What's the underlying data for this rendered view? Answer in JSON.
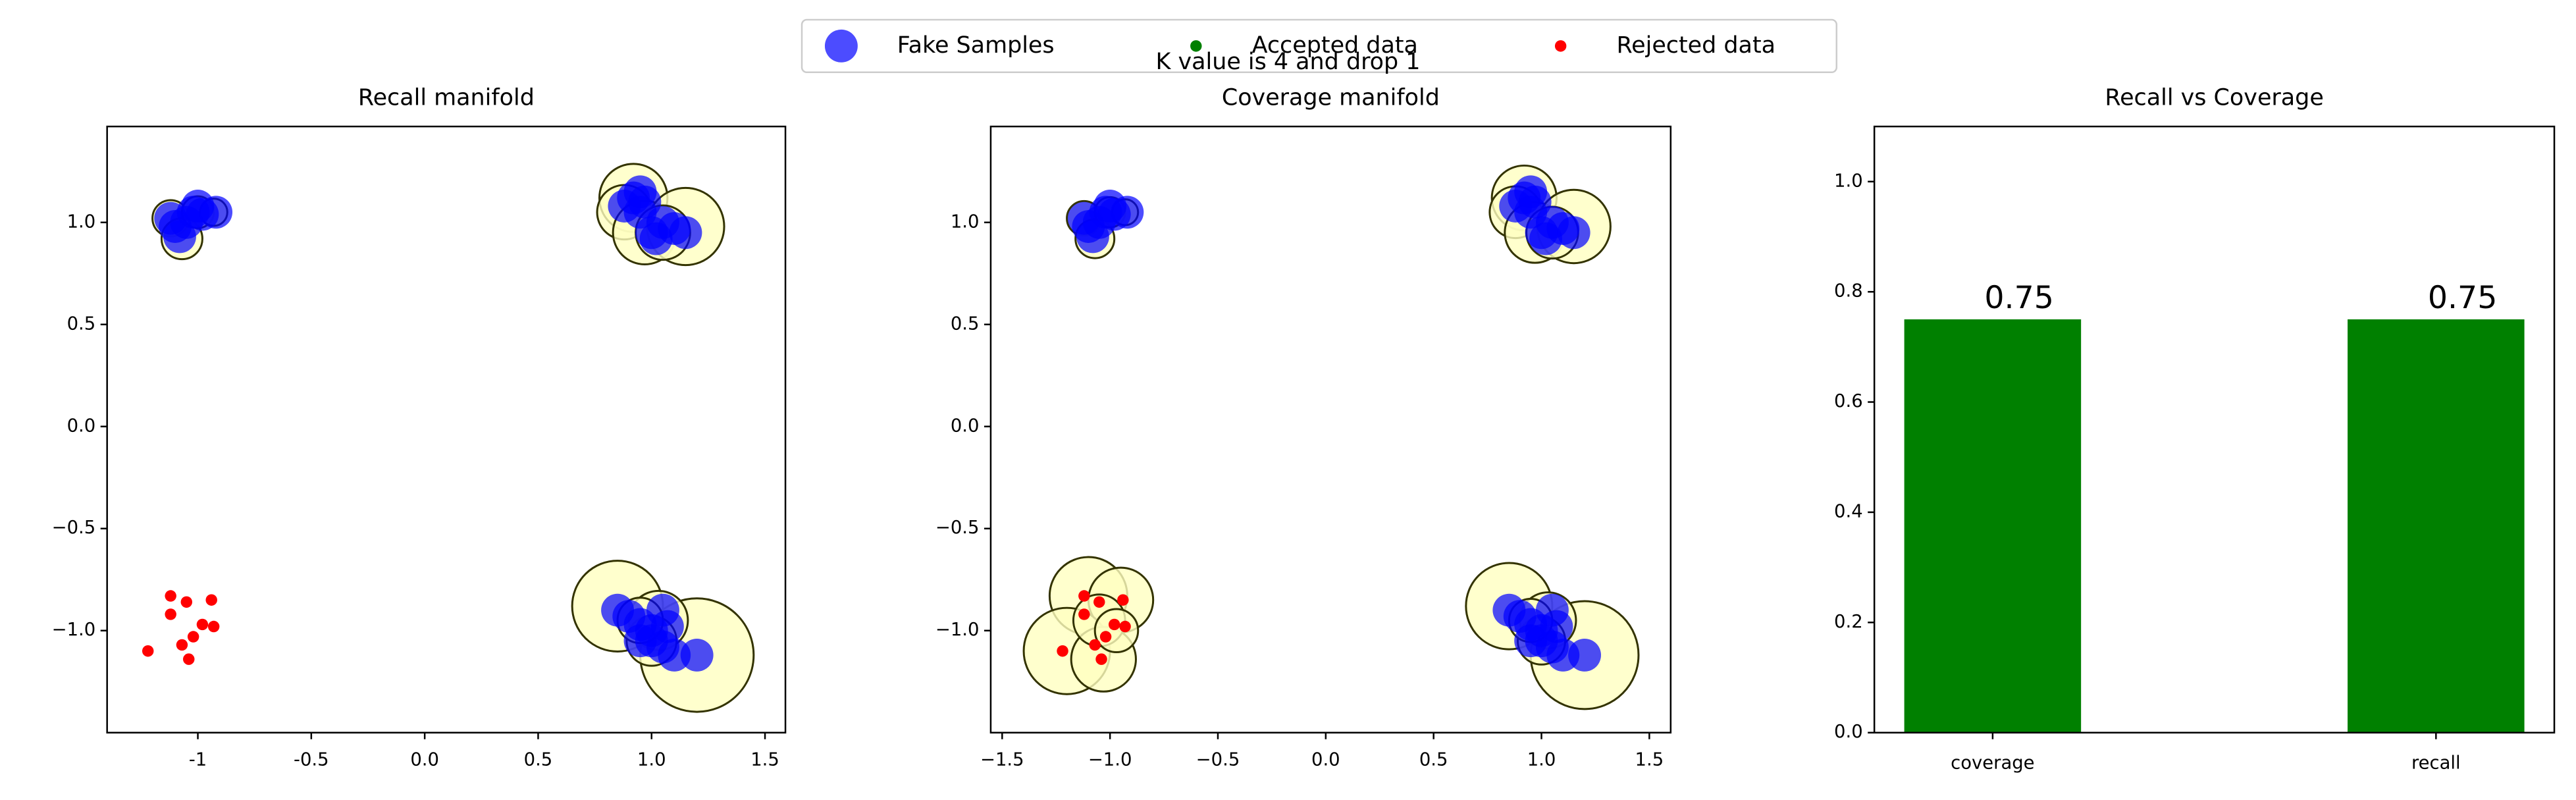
{
  "title": "K value is 4 and drop 1",
  "chart_data": [
    {
      "type": "scatter",
      "title": "Recall manifold",
      "xlim": [
        -1.4,
        1.59
      ],
      "ylim": [
        -1.5,
        1.47
      ],
      "xticks": [
        -1,
        -0.5,
        {
          "value": 0,
          "label": "0.0"
        },
        0.5,
        {
          "value": 1,
          "label": "1.0"
        },
        1.5
      ],
      "yticks": [
        {
          "value": -1,
          "label": "−1.0"
        },
        {
          "value": -0.5,
          "label": "−0.5"
        },
        {
          "value": 0,
          "label": "0.0"
        },
        0.5,
        {
          "value": 1,
          "label": "1.0"
        }
      ],
      "series": [
        {
          "color": "#ffffc0",
          "edgecolor": "#333300",
          "x": [
            -1.12,
            -1.07,
            -1.0,
            -0.93,
            0.92,
            0.88,
            0.97,
            1.15,
            1.05,
            0.85,
            1.2,
            1.03,
            1.0,
            0.95
          ],
          "values": [
            1.02,
            0.92,
            1.05,
            1.05,
            1.12,
            1.05,
            0.95,
            0.98,
            0.95,
            -0.88,
            -1.12,
            -0.95,
            -1.05,
            -0.95
          ],
          "r": [
            0.08,
            0.09,
            0.07,
            0.06,
            0.15,
            0.12,
            0.14,
            0.17,
            0.12,
            0.2,
            0.25,
            0.13,
            0.11,
            0.1
          ]
        },
        {
          "name": "Fake Samples",
          "color": "#0000ff",
          "marker_size": 10,
          "x": [
            -1.12,
            -1.08,
            -1.05,
            -1.02,
            -0.98,
            -0.92,
            -1.1,
            -1.0,
            0.88,
            0.92,
            0.95,
            0.97,
            1.0,
            1.02,
            1.05,
            1.1,
            1.15,
            0.95,
            0.85,
            0.9,
            0.95,
            1.0,
            1.05,
            1.07,
            1.0,
            0.95,
            1.1,
            1.2,
            1.05
          ],
          "values": [
            1.02,
            0.93,
            1.0,
            1.05,
            1.04,
            1.05,
            0.98,
            1.08,
            1.08,
            1.12,
            1.15,
            1.1,
            0.95,
            0.92,
            1.0,
            0.97,
            0.95,
            1.05,
            -0.9,
            -0.93,
            -0.97,
            -1.0,
            -0.9,
            -0.98,
            -1.05,
            -1.05,
            -1.12,
            -1.12,
            -1.08
          ]
        },
        {
          "name": "Accepted data",
          "color": "#008000",
          "marker_size": 3.5,
          "x": [],
          "values": []
        },
        {
          "name": "Rejected data",
          "color": "#ff0000",
          "marker_size": 3.5,
          "x": [
            -1.12,
            -1.05,
            -0.94,
            -1.12,
            -0.98,
            -0.93,
            -1.02,
            -1.07,
            -1.22,
            -1.04
          ],
          "values": [
            -0.83,
            -0.86,
            -0.85,
            -0.92,
            -0.97,
            -0.98,
            -1.03,
            -1.07,
            -1.1,
            -1.14
          ]
        }
      ]
    },
    {
      "type": "scatter",
      "title": "Coverage manifold",
      "xlim": [
        -1.553,
        1.599
      ],
      "ylim": [
        -1.5,
        1.47
      ],
      "xticks": [
        {
          "value": -1.5,
          "label": "−1.5"
        },
        {
          "value": -1,
          "label": "−1.0"
        },
        {
          "value": -0.5,
          "label": "−0.5"
        },
        {
          "value": 0,
          "label": "0.0"
        },
        0.5,
        {
          "value": 1,
          "label": "1.0"
        },
        1.5
      ],
      "yticks": [
        {
          "value": -1,
          "label": "−1.0"
        },
        {
          "value": -0.5,
          "label": "−0.5"
        },
        {
          "value": 0,
          "label": "0.0"
        },
        0.5,
        {
          "value": 1,
          "label": "1.0"
        }
      ],
      "series": [
        {
          "color": "#ffffc0",
          "edgecolor": "#333300",
          "x": [
            -1.12,
            -1.07,
            -1.0,
            -0.93,
            0.92,
            0.88,
            0.97,
            1.15,
            1.05,
            0.85,
            1.2,
            1.03,
            1.0,
            0.95,
            -1.1,
            -0.95,
            -1.2,
            -1.03,
            -1.05,
            -0.97
          ],
          "values": [
            1.02,
            0.92,
            1.05,
            1.05,
            1.12,
            1.05,
            0.95,
            0.98,
            0.95,
            -0.88,
            -1.12,
            -0.95,
            -1.05,
            -0.95,
            -0.83,
            -0.85,
            -1.1,
            -1.14,
            -0.95,
            -1.0
          ],
          "r": [
            0.08,
            0.09,
            0.07,
            0.06,
            0.15,
            0.12,
            0.14,
            0.17,
            0.12,
            0.2,
            0.25,
            0.13,
            0.11,
            0.1,
            0.18,
            0.15,
            0.2,
            0.15,
            0.12,
            0.1
          ]
        },
        {
          "name": "Fake Samples",
          "color": "#0000ff",
          "marker_size": 10,
          "x": [
            -1.12,
            -1.08,
            -1.05,
            -1.02,
            -0.98,
            -0.92,
            -1.1,
            -1.0,
            0.88,
            0.92,
            0.95,
            0.97,
            1.0,
            1.02,
            1.05,
            1.1,
            1.15,
            0.95,
            0.85,
            0.9,
            0.95,
            1.0,
            1.05,
            1.07,
            1.0,
            0.95,
            1.1,
            1.2,
            1.05
          ],
          "values": [
            1.02,
            0.93,
            1.0,
            1.05,
            1.04,
            1.05,
            0.98,
            1.08,
            1.08,
            1.12,
            1.15,
            1.1,
            0.95,
            0.92,
            1.0,
            0.97,
            0.95,
            1.05,
            -0.9,
            -0.93,
            -0.97,
            -1.0,
            -0.9,
            -0.98,
            -1.05,
            -1.05,
            -1.12,
            -1.12,
            -1.08
          ]
        },
        {
          "name": "Accepted data",
          "color": "#008000",
          "marker_size": 3.5,
          "x": [],
          "values": []
        },
        {
          "name": "Rejected data",
          "color": "#ff0000",
          "marker_size": 3.5,
          "x": [
            -1.12,
            -1.05,
            -0.94,
            -1.12,
            -0.98,
            -0.93,
            -1.02,
            -1.07,
            -1.22,
            -1.04
          ],
          "values": [
            -0.83,
            -0.86,
            -0.85,
            -0.92,
            -0.97,
            -0.98,
            -1.03,
            -1.07,
            -1.1,
            -1.14
          ]
        }
      ]
    },
    {
      "type": "bar",
      "title": "Recall vs Coverage",
      "categories": [
        "coverage",
        "recall"
      ],
      "values": [
        0.75,
        0.75
      ],
      "color": "#008000",
      "ylim": [
        0,
        1.1
      ],
      "yticks": [
        {
          "value": 0,
          "label": "0.0"
        },
        0.2,
        0.4,
        0.6,
        0.8,
        {
          "value": 1,
          "label": "1.0"
        }
      ]
    }
  ]
}
